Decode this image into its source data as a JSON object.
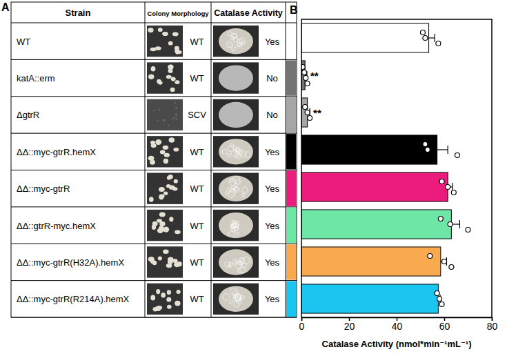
{
  "panel_labels": [
    "A",
    "B"
  ],
  "table": {
    "header": [
      "Strain",
      "Colony Morphology",
      "Catalase Activity"
    ],
    "rows": [
      [
        "WT",
        "WT",
        "Yes"
      ],
      [
        "katA::erm",
        "WT",
        "No"
      ],
      [
        "ΔgtrR",
        "SCV",
        "No"
      ],
      [
        "ΔΔ::myc-gtrR.hemX",
        "WT",
        "Yes"
      ],
      [
        "ΔΔ::myc-gtrR",
        "WT",
        "Yes"
      ],
      [
        "ΔΔ::gtrR-myc.hemX",
        "WT",
        "Yes"
      ],
      [
        "ΔΔ::myc-gtrR(H32A).hemX",
        "WT",
        "Yes"
      ],
      [
        "ΔΔ::myc-gtrR(R214A).hemX",
        "WT",
        "Yes"
      ]
    ]
  },
  "chart_data": {
    "type": "bar",
    "orientation": "horizontal",
    "categories": [
      null,
      null,
      null,
      null,
      null,
      null,
      null,
      null
    ],
    "values": [
      53.5,
      1.5,
      2.5,
      57,
      61.5,
      63,
      58.5,
      57.5
    ],
    "errors": [
      2.5,
      0.8,
      1,
      4.5,
      2,
      3.5,
      2.5,
      0.8
    ],
    "points": [
      [
        51,
        52,
        57.5
      ],
      [
        0.5,
        1.2,
        1.8,
        2.5
      ],
      [
        1.5,
        2.5,
        3.5
      ],
      [
        52,
        53,
        65.5
      ],
      [
        59,
        61.5,
        64
      ],
      [
        58.5,
        62.5,
        70
      ],
      [
        54,
        60,
        63
      ],
      [
        57,
        58,
        59
      ]
    ],
    "colors": [
      "#ffffff",
      "#737373",
      "#a6a6a6",
      "#000000",
      "#ec1c7c",
      "#6de6a6",
      "#f9aa4f",
      "#1ac6ef"
    ],
    "annotations": [
      {
        "index": 1,
        "text": "**"
      },
      {
        "index": 2,
        "text": "**"
      }
    ],
    "xlabel": "Catalase Activity (nmol*min⁻¹mL⁻¹)",
    "xlim": [
      0,
      80
    ],
    "xticks": [
      0,
      20,
      40,
      60,
      80
    ],
    "tick_labels": "x"
  }
}
